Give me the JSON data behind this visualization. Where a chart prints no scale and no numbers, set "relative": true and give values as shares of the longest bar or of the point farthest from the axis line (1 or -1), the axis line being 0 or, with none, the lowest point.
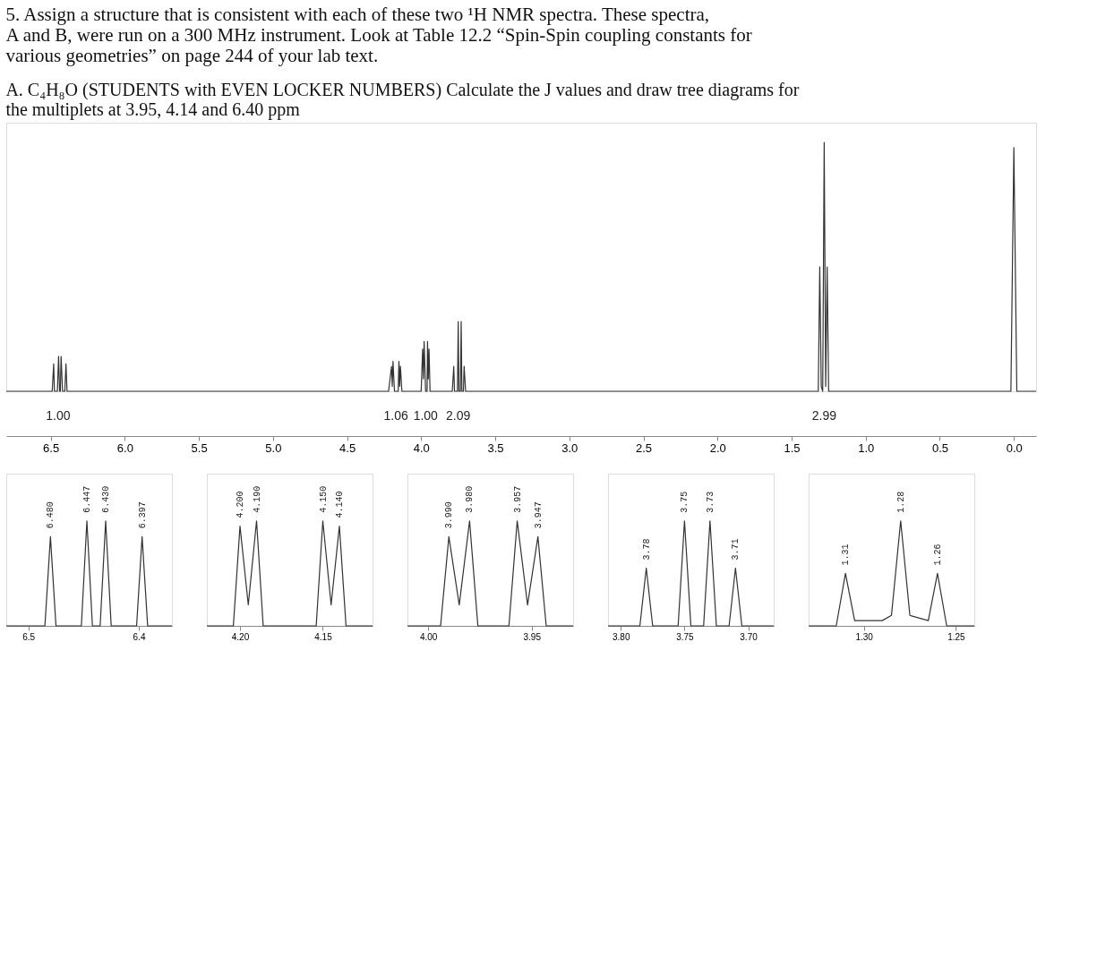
{
  "chart_data": [
    {
      "type": "line",
      "title": "5. Assign a structure that is consistent with each of these two ¹H NMR spectra. These spectra, A and B, were run on a 300 MHz instrument. Look at Table 12.2 “Spin-Spin coupling constants for various geometries” on page 244 of your lab text.",
      "subtitle": "A. C₄H₈O (STUDENTS with EVEN LOCKER NUMBERS) Calculate the J values and draw tree diagrams for the multiplets at 3.95, 4.14 and 6.40 ppm",
      "relative": true,
      "grid": false,
      "color": "#333333",
      "x": [
        6.8,
        6.49,
        6.48,
        6.475,
        6.455,
        6.447,
        6.44,
        6.435,
        6.43,
        6.42,
        6.405,
        6.397,
        6.39,
        4.22,
        4.2,
        4.195,
        4.19,
        4.18,
        4.155,
        4.15,
        4.145,
        4.14,
        4.13,
        4.0,
        3.99,
        3.985,
        3.98,
        3.97,
        3.96,
        3.957,
        3.952,
        3.947,
        3.94,
        3.79,
        3.78,
        3.775,
        3.755,
        3.75,
        3.745,
        3.735,
        3.73,
        3.725,
        3.715,
        3.71,
        3.7,
        1.32,
        1.31,
        1.3,
        1.29,
        1.28,
        1.27,
        1.26,
        1.25,
        0.02,
        0.0,
        -0.02,
        -0.15
      ],
      "values": [
        0,
        0,
        0.11,
        0,
        0,
        0.14,
        0,
        0,
        0.14,
        0,
        0,
        0.11,
        0,
        0,
        0.1,
        0.02,
        0.12,
        0,
        0,
        0.12,
        0.02,
        0.1,
        0,
        0,
        0.17,
        0.05,
        0.2,
        0,
        0,
        0.2,
        0.05,
        0.17,
        0,
        0,
        0.1,
        0,
        0,
        0.28,
        0,
        0,
        0.28,
        0,
        0,
        0.1,
        0,
        0,
        0.5,
        0.02,
        0,
        1.0,
        0.02,
        0.5,
        0,
        0,
        0.98,
        0,
        0
      ],
      "xlim": [
        6.8,
        -0.15
      ],
      "xticks": [
        6.5,
        {
          "value": 6,
          "label": "6.0"
        },
        5.5,
        {
          "value": 5,
          "label": "5.0"
        },
        4.5,
        {
          "value": 4,
          "label": "4.0"
        },
        3.5,
        {
          "value": 3,
          "label": "3.0"
        },
        2.5,
        {
          "value": 2,
          "label": "2.0"
        },
        1.5,
        {
          "value": 1,
          "label": "1.0"
        },
        0.5,
        {
          "value": 0,
          "label": "0.0"
        }
      ],
      "annotations": [
        {
          "text": "1.00",
          "x": 6.45,
          "y": 0
        },
        {
          "text": "1.06",
          "x": 4.17,
          "y": 0
        },
        {
          "text": "1.00",
          "x": 3.97,
          "y": 0
        },
        {
          "text": "2.09",
          "x": 3.75,
          "y": 0
        },
        {
          "text": "2.99",
          "x": 1.28,
          "y": 0
        }
      ]
    },
    {
      "type": "line",
      "relative": true,
      "grid": false,
      "tick_labels": "x",
      "color": "#333333",
      "x": [
        6.52,
        6.485,
        6.48,
        6.475,
        6.452,
        6.447,
        6.442,
        6.435,
        6.43,
        6.425,
        6.402,
        6.397,
        6.392,
        6.37
      ],
      "values": [
        0,
        0,
        0.85,
        0,
        0,
        1.0,
        0,
        0,
        1.0,
        0,
        0,
        0.85,
        0,
        0
      ],
      "xlim": [
        6.52,
        6.37
      ],
      "xticks": [
        6.5,
        6.4
      ],
      "annotations": [
        {
          "text": "6.480",
          "x": 6.48,
          "y": 0.85
        },
        {
          "text": "6.447",
          "x": 6.447,
          "y": 1.0
        },
        {
          "text": "6.430",
          "x": 6.43,
          "y": 1.0
        },
        {
          "text": "6.397",
          "x": 6.397,
          "y": 0.85
        }
      ]
    },
    {
      "type": "line",
      "relative": true,
      "grid": false,
      "tick_labels": "x",
      "color": "#333333",
      "x": [
        4.22,
        4.204,
        4.2,
        4.195,
        4.19,
        4.186,
        4.154,
        4.15,
        4.145,
        4.14,
        4.136,
        4.12
      ],
      "values": [
        0,
        0,
        0.95,
        0.2,
        1.0,
        0,
        0,
        1.0,
        0.2,
        0.95,
        0,
        0
      ],
      "xlim": [
        4.22,
        4.12
      ],
      "xticks": [
        {
          "value": 4.2,
          "label": "4.20"
        },
        4.15
      ],
      "annotations": [
        {
          "text": "4.200",
          "x": 4.2,
          "y": 0.95
        },
        {
          "text": "4.190",
          "x": 4.19,
          "y": 1.0
        },
        {
          "text": "4.150",
          "x": 4.15,
          "y": 1.0
        },
        {
          "text": "4.140",
          "x": 4.14,
          "y": 0.95
        }
      ]
    },
    {
      "type": "line",
      "relative": true,
      "grid": false,
      "tick_labels": "x",
      "color": "#333333",
      "x": [
        4.01,
        3.994,
        3.99,
        3.985,
        3.98,
        3.976,
        3.961,
        3.957,
        3.952,
        3.947,
        3.943,
        3.93
      ],
      "values": [
        0,
        0,
        0.85,
        0.2,
        1.0,
        0,
        0,
        1.0,
        0.2,
        0.85,
        0,
        0
      ],
      "xlim": [
        4.01,
        3.93
      ],
      "xticks": [
        {
          "value": 4,
          "label": "4.00"
        },
        3.95
      ],
      "annotations": [
        {
          "text": "3.990",
          "x": 3.99,
          "y": 0.85
        },
        {
          "text": "3.980",
          "x": 3.98,
          "y": 1.0
        },
        {
          "text": "3.957",
          "x": 3.957,
          "y": 1.0
        },
        {
          "text": "3.947",
          "x": 3.947,
          "y": 0.85
        }
      ]
    },
    {
      "type": "line",
      "relative": true,
      "grid": false,
      "tick_labels": "x",
      "color": "#333333",
      "x": [
        3.81,
        3.785,
        3.78,
        3.775,
        3.755,
        3.75,
        3.745,
        3.735,
        3.73,
        3.725,
        3.715,
        3.71,
        3.705,
        3.68
      ],
      "values": [
        0,
        0,
        0.55,
        0,
        0,
        1.0,
        0,
        0,
        1.0,
        0,
        0,
        0.55,
        0,
        0
      ],
      "xlim": [
        3.81,
        3.68
      ],
      "xticks": [
        {
          "value": 3.8,
          "label": "3.80"
        },
        3.75,
        {
          "value": 3.7,
          "label": "3.70"
        }
      ],
      "annotations": [
        {
          "text": "3.78",
          "x": 3.78,
          "y": 0.55
        },
        {
          "text": "3.75",
          "x": 3.75,
          "y": 1.0
        },
        {
          "text": "3.73",
          "x": 3.73,
          "y": 1.0
        },
        {
          "text": "3.71",
          "x": 3.71,
          "y": 0.55
        }
      ]
    },
    {
      "type": "line",
      "relative": true,
      "grid": false,
      "tick_labels": "x",
      "color": "#333333",
      "x": [
        1.33,
        1.315,
        1.31,
        1.305,
        1.29,
        1.285,
        1.28,
        1.275,
        1.265,
        1.26,
        1.255,
        1.24
      ],
      "values": [
        0,
        0,
        0.5,
        0.05,
        0.05,
        0.1,
        1.0,
        0.1,
        0.05,
        0.5,
        0,
        0
      ],
      "xlim": [
        1.33,
        1.24
      ],
      "xticks": [
        {
          "value": 1.3,
          "label": "1.30"
        },
        1.25
      ],
      "annotations": [
        {
          "text": "1.31",
          "x": 1.31,
          "y": 0.5
        },
        {
          "text": "1.28",
          "x": 1.28,
          "y": 1.0
        },
        {
          "text": "1.26",
          "x": 1.26,
          "y": 0.5
        }
      ]
    }
  ]
}
